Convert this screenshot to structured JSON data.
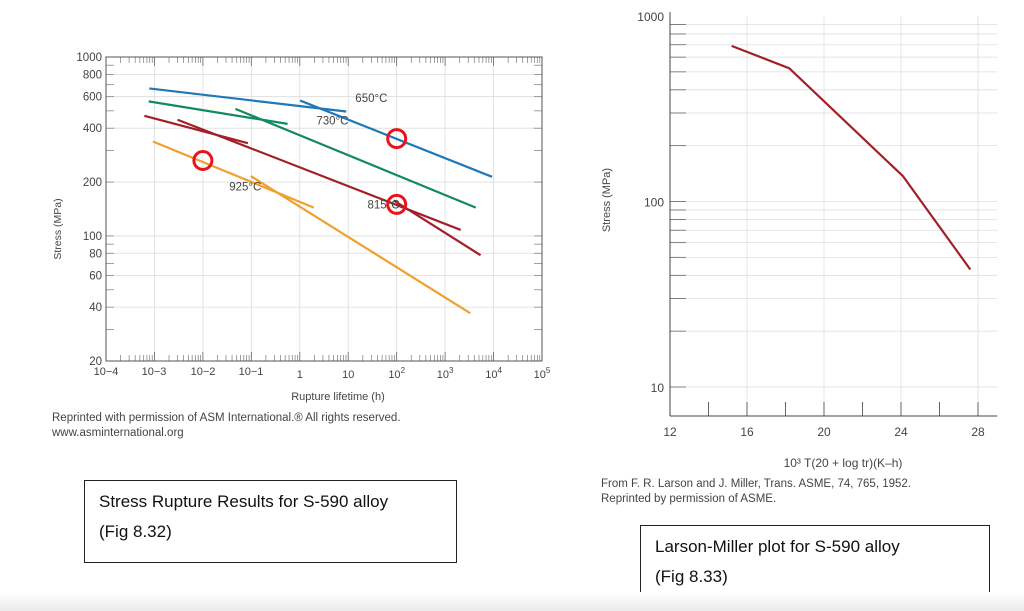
{
  "chart_data": [
    {
      "type": "line",
      "xlabel": "Rupture lifetime (h)",
      "ylabel": "Stress (MPa)",
      "x_scale": "log",
      "y_scale": "log",
      "xlim": [
        0.0001,
        100000
      ],
      "ylim": [
        20,
        1000
      ],
      "x_tick_labels": [
        "10−4",
        "10−3",
        "10−2",
        "10−1",
        "1",
        "10",
        "102",
        "103",
        "104",
        "105"
      ],
      "x_tick_values": [
        0.0001,
        0.001,
        0.01,
        0.1,
        1,
        10,
        100,
        1000,
        10000,
        100000
      ],
      "y_ticks": [
        1000,
        800,
        600,
        400,
        200,
        100,
        80,
        60,
        40,
        20
      ],
      "grid": true,
      "series": [
        {
          "name": "650°C",
          "color": "#1f78b8",
          "segments": [
            [
              [
                0.00078,
                667
              ],
              [
                9.1,
                496
              ]
            ],
            [
              [
                1.02,
                571
              ],
              [
                9300,
                214
              ]
            ]
          ]
        },
        {
          "name": "730°C",
          "color": "#138a5e",
          "segments": [
            [
              [
                0.00076,
                565
              ],
              [
                0.56,
                423
              ]
            ],
            [
              [
                0.047,
                513
              ],
              [
                4300,
                144
              ]
            ]
          ]
        },
        {
          "name": "815°C",
          "color": "#a3202a",
          "segments": [
            [
              [
                0.00062,
                469
              ],
              [
                0.085,
                330
              ]
            ],
            [
              [
                0.003,
                446
              ],
              [
                2100,
                108
              ]
            ],
            [
              [
                87,
                158
              ],
              [
                5400,
                78
              ]
            ]
          ]
        },
        {
          "name": "925°C",
          "color": "#f0a030",
          "segments": [
            [
              [
                0.00093,
                337
              ],
              [
                1.95,
                144
              ]
            ],
            [
              [
                0.098,
                216
              ],
              [
                3300,
                37
              ]
            ]
          ]
        }
      ],
      "highlight_circles": [
        [
          0.01,
          264
        ],
        [
          100,
          350
        ],
        [
          100,
          150
        ]
      ],
      "highlight_color": "#e8141c",
      "caption": [
        "Reprinted with permission of ASM International.® All rights reserved.",
        "www.asminternational.org"
      ]
    },
    {
      "type": "line",
      "xlabel": "10³ T(20 + log tr)(K–h)",
      "ylabel": "Stress (MPa)",
      "x_scale": "linear",
      "y_scale": "log",
      "xlim": [
        12,
        29
      ],
      "ylim": [
        7,
        1000
      ],
      "x_ticks": [
        12,
        16,
        20,
        24,
        28
      ],
      "y_ticks": [
        10,
        100,
        1000
      ],
      "grid": true,
      "series": [
        {
          "color": "#a3202a",
          "x": [
            15.2,
            18.2,
            24.1,
            27.6
          ],
          "y": [
            690,
            522,
            137,
            43
          ]
        }
      ],
      "caption": [
        "From F. R. Larson and J. Miller, Trans. ASME, 74, 765, 1952.",
        "Reprinted by permission of ASME."
      ]
    }
  ],
  "boxes": {
    "left": [
      "Stress Rupture Results for S-590 alloy",
      "(Fig 8.32)"
    ],
    "right": [
      "Larson-Miller plot for S-590 alloy",
      "(Fig 8.33)"
    ]
  }
}
